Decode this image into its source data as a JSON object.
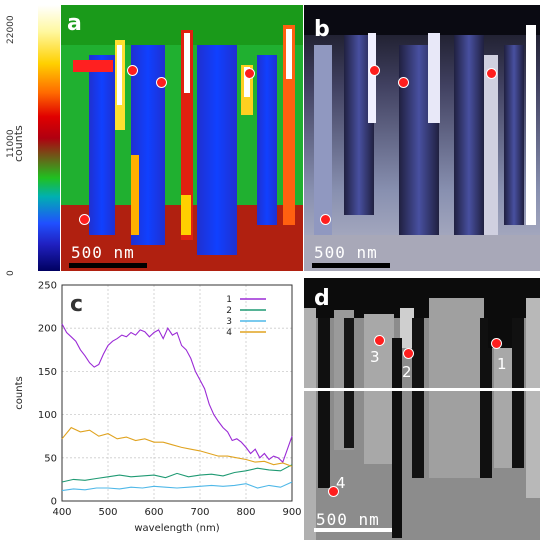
{
  "colorbar": {
    "label": "counts",
    "ticks": [
      "22000",
      "11000",
      "0"
    ]
  },
  "panels": {
    "a": {
      "letter": "a",
      "scale": "500 nm"
    },
    "b": {
      "letter": "b",
      "scale": "500 nm"
    },
    "d": {
      "letter": "d",
      "scale": "500 nm",
      "labels": [
        "1",
        "2",
        "3",
        "4"
      ]
    }
  },
  "chart_data": {
    "type": "line",
    "panel_letter": "c",
    "xlabel": "wavelength (nm)",
    "ylabel": "counts",
    "xlim": [
      400,
      900
    ],
    "ylim": [
      0,
      250
    ],
    "xticks": [
      400,
      500,
      600,
      700,
      800,
      900
    ],
    "yticks": [
      0,
      50,
      100,
      150,
      200,
      250
    ],
    "grid": true,
    "legend_position": "top-right",
    "series": [
      {
        "name": "1",
        "color": "#9b2bd6",
        "x": [
          400,
          410,
          420,
          430,
          440,
          450,
          460,
          470,
          480,
          490,
          500,
          510,
          520,
          530,
          540,
          550,
          560,
          570,
          580,
          590,
          600,
          610,
          620,
          630,
          640,
          650,
          660,
          670,
          680,
          690,
          700,
          710,
          720,
          730,
          740,
          750,
          760,
          770,
          780,
          790,
          800,
          810,
          820,
          830,
          840,
          850,
          860,
          870,
          880,
          890,
          900
        ],
        "y": [
          205,
          195,
          190,
          185,
          175,
          168,
          160,
          155,
          158,
          170,
          180,
          185,
          188,
          192,
          190,
          195,
          192,
          198,
          196,
          190,
          195,
          198,
          188,
          200,
          192,
          195,
          180,
          175,
          165,
          150,
          140,
          130,
          112,
          100,
          92,
          85,
          80,
          70,
          72,
          68,
          62,
          55,
          60,
          50,
          55,
          48,
          52,
          50,
          45,
          60,
          75
        ]
      },
      {
        "name": "2",
        "color": "#1f9a73",
        "x": [
          400,
          425,
          450,
          475,
          500,
          525,
          550,
          575,
          600,
          625,
          650,
          675,
          700,
          725,
          750,
          775,
          800,
          825,
          850,
          875,
          900
        ],
        "y": [
          22,
          25,
          24,
          26,
          28,
          30,
          28,
          29,
          30,
          27,
          32,
          28,
          30,
          31,
          29,
          33,
          35,
          38,
          36,
          35,
          42
        ]
      },
      {
        "name": "3",
        "color": "#4fb8e8",
        "x": [
          400,
          425,
          450,
          475,
          500,
          525,
          550,
          575,
          600,
          625,
          650,
          675,
          700,
          725,
          750,
          775,
          800,
          825,
          850,
          875,
          900
        ],
        "y": [
          12,
          14,
          13,
          15,
          15,
          14,
          16,
          15,
          17,
          16,
          15,
          16,
          17,
          18,
          17,
          18,
          20,
          15,
          18,
          16,
          22
        ]
      },
      {
        "name": "4",
        "color": "#e0a320",
        "x": [
          400,
          420,
          440,
          460,
          480,
          500,
          520,
          540,
          560,
          580,
          600,
          620,
          640,
          660,
          680,
          700,
          720,
          740,
          760,
          780,
          800,
          820,
          840,
          860,
          880,
          900
        ],
        "y": [
          72,
          85,
          80,
          82,
          75,
          78,
          72,
          74,
          70,
          72,
          68,
          68,
          65,
          62,
          60,
          58,
          55,
          52,
          52,
          50,
          48,
          45,
          46,
          42,
          44,
          40
        ]
      }
    ]
  }
}
